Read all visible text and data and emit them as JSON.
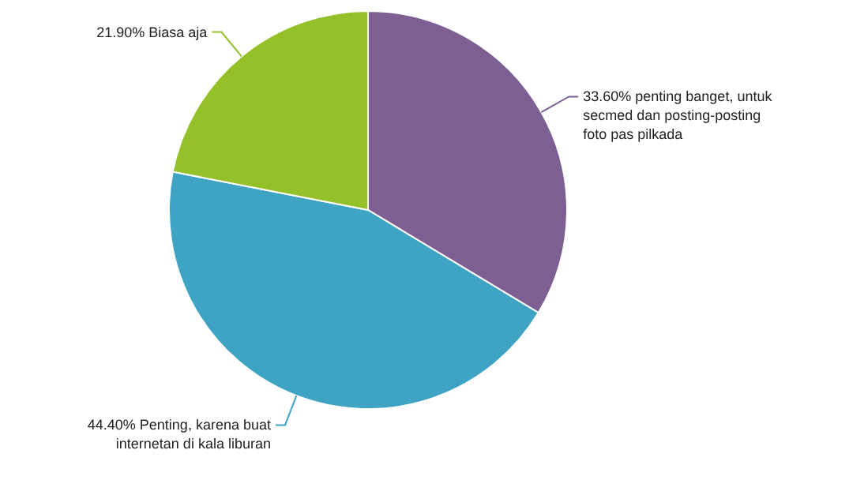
{
  "chart_data": {
    "type": "pie",
    "categories": [
      "penting banget, untuk secmed dan posting-posting foto pas pilkada",
      "Penting, karena buat internetan di kala liburan",
      "Biasa aja"
    ],
    "values": [
      33.6,
      44.4,
      21.9
    ],
    "value_labels": [
      "33.60%",
      "44.40%",
      "21.90%"
    ],
    "colors": [
      "#7e5f93",
      "#3fa3c3",
      "#94c12a"
    ]
  }
}
